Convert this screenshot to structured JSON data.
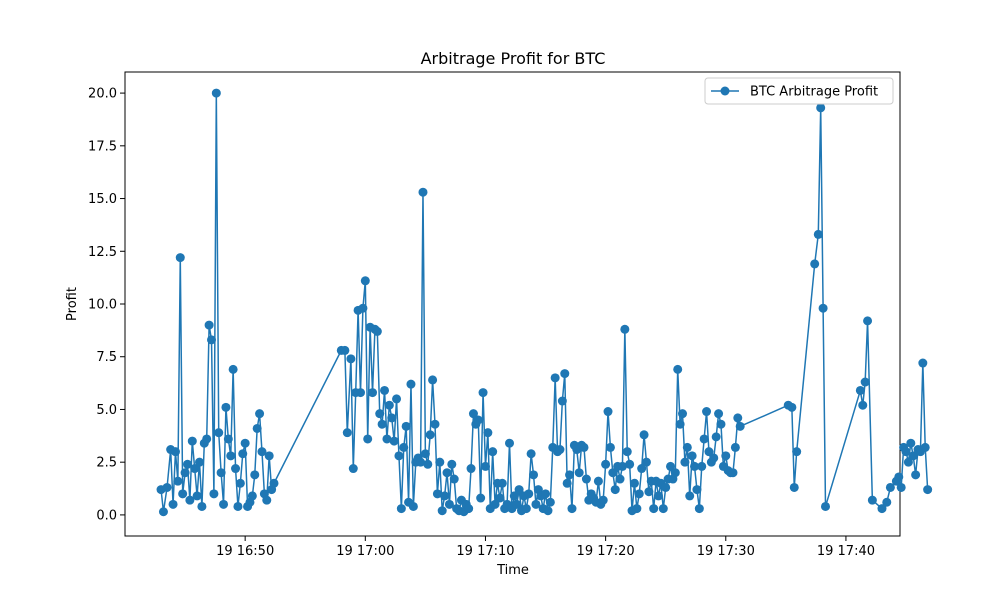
{
  "chart_data": {
    "type": "line",
    "title": "Arbitrage Profit for BTC",
    "xlabel": "Time",
    "ylabel": "Profit",
    "x_unit": "minutes of 19th, 16:00 baseline",
    "xlim": [
      "16:40.0",
      "17:44.5"
    ],
    "ylim": [
      -1.0,
      21.0
    ],
    "x_ticks": [
      {
        "value": "16:50",
        "label": "19 16:50"
      },
      {
        "value": "17:00",
        "label": "19 17:00"
      },
      {
        "value": "17:10",
        "label": "19 17:10"
      },
      {
        "value": "17:20",
        "label": "19 17:20"
      },
      {
        "value": "17:30",
        "label": "19 17:30"
      },
      {
        "value": "17:40",
        "label": "19 17:40"
      }
    ],
    "y_ticks": [
      {
        "value": 0.0,
        "label": "0.0"
      },
      {
        "value": 2.5,
        "label": "2.5"
      },
      {
        "value": 5.0,
        "label": "5.0"
      },
      {
        "value": 7.5,
        "label": "7.5"
      },
      {
        "value": 10.0,
        "label": "10.0"
      },
      {
        "value": 12.5,
        "label": "12.5"
      },
      {
        "value": 15.0,
        "label": "15.0"
      },
      {
        "value": 17.5,
        "label": "17.5"
      },
      {
        "value": 20.0,
        "label": "20.0"
      }
    ],
    "grid": false,
    "legend": {
      "position": "top-right"
    },
    "color": "#1f77b4",
    "series": [
      {
        "name": "BTC Arbitrage Profit",
        "points": [
          [
            "16:43.0",
            1.2
          ],
          [
            "16:43.2",
            0.15
          ],
          [
            "16:43.5",
            1.3
          ],
          [
            "16:43.8",
            3.1
          ],
          [
            "16:44.0",
            0.5
          ],
          [
            "16:44.2",
            3.0
          ],
          [
            "16:44.4",
            1.6
          ],
          [
            "16:44.6",
            12.2
          ],
          [
            "16:44.8",
            1.0
          ],
          [
            "16:45.0",
            2.0
          ],
          [
            "16:45.2",
            2.4
          ],
          [
            "16:45.4",
            0.7
          ],
          [
            "16:45.6",
            3.5
          ],
          [
            "16:45.8",
            2.2
          ],
          [
            "16:46.0",
            0.9
          ],
          [
            "16:46.2",
            2.5
          ],
          [
            "16:46.4",
            0.4
          ],
          [
            "16:46.6",
            3.4
          ],
          [
            "16:46.8",
            3.6
          ],
          [
            "16:47.0",
            9.0
          ],
          [
            "16:47.2",
            8.3
          ],
          [
            "16:47.4",
            1.0
          ],
          [
            "16:47.6",
            20.0
          ],
          [
            "16:47.8",
            3.9
          ],
          [
            "16:48.0",
            2.0
          ],
          [
            "16:48.2",
            0.5
          ],
          [
            "16:48.4",
            5.1
          ],
          [
            "16:48.6",
            3.6
          ],
          [
            "16:48.8",
            2.8
          ],
          [
            "16:49.0",
            6.9
          ],
          [
            "16:49.2",
            2.2
          ],
          [
            "16:49.4",
            0.4
          ],
          [
            "16:49.6",
            1.5
          ],
          [
            "16:49.8",
            2.9
          ],
          [
            "16:50.0",
            3.4
          ],
          [
            "16:50.2",
            0.4
          ],
          [
            "16:50.4",
            0.6
          ],
          [
            "16:50.6",
            0.9
          ],
          [
            "16:50.8",
            1.9
          ],
          [
            "16:51.0",
            4.1
          ],
          [
            "16:51.2",
            4.8
          ],
          [
            "16:51.4",
            3.0
          ],
          [
            "16:51.6",
            1.0
          ],
          [
            "16:51.8",
            0.7
          ],
          [
            "16:52.0",
            2.8
          ],
          [
            "16:52.2",
            1.2
          ],
          [
            "16:52.4",
            1.5
          ],
          [
            "16:58.0",
            7.8
          ],
          [
            "16:58.3",
            7.8
          ],
          [
            "16:58.5",
            3.9
          ],
          [
            "16:58.8",
            7.4
          ],
          [
            "16:59.0",
            2.2
          ],
          [
            "16:59.2",
            5.8
          ],
          [
            "16:59.4",
            9.7
          ],
          [
            "16:59.6",
            5.8
          ],
          [
            "16:59.8",
            9.8
          ],
          [
            "17:00.0",
            11.1
          ],
          [
            "17:00.2",
            3.6
          ],
          [
            "17:00.4",
            8.9
          ],
          [
            "17:00.6",
            5.8
          ],
          [
            "17:00.8",
            8.8
          ],
          [
            "17:01.0",
            8.7
          ],
          [
            "17:01.2",
            4.8
          ],
          [
            "17:01.4",
            4.3
          ],
          [
            "17:01.6",
            5.9
          ],
          [
            "17:01.8",
            3.6
          ],
          [
            "17:02.0",
            5.2
          ],
          [
            "17:02.2",
            4.6
          ],
          [
            "17:02.4",
            3.5
          ],
          [
            "17:02.6",
            5.5
          ],
          [
            "17:02.8",
            2.8
          ],
          [
            "17:03.0",
            0.3
          ],
          [
            "17:03.2",
            3.2
          ],
          [
            "17:03.4",
            4.2
          ],
          [
            "17:03.6",
            0.6
          ],
          [
            "17:03.8",
            6.2
          ],
          [
            "17:04.0",
            0.4
          ],
          [
            "17:04.2",
            2.5
          ],
          [
            "17:04.4",
            2.7
          ],
          [
            "17:04.6",
            2.5
          ],
          [
            "17:04.8",
            15.3
          ],
          [
            "17:05.0",
            2.9
          ],
          [
            "17:05.2",
            2.4
          ],
          [
            "17:05.4",
            3.8
          ],
          [
            "17:05.6",
            6.4
          ],
          [
            "17:05.8",
            4.3
          ],
          [
            "17:06.0",
            1.0
          ],
          [
            "17:06.2",
            2.5
          ],
          [
            "17:06.4",
            0.2
          ],
          [
            "17:06.6",
            0.9
          ],
          [
            "17:06.8",
            2.0
          ],
          [
            "17:07.0",
            0.5
          ],
          [
            "17:07.2",
            2.4
          ],
          [
            "17:07.4",
            1.7
          ],
          [
            "17:07.6",
            0.3
          ],
          [
            "17:07.8",
            0.2
          ],
          [
            "17:08.0",
            0.7
          ],
          [
            "17:08.2",
            0.15
          ],
          [
            "17:08.4",
            0.5
          ],
          [
            "17:08.6",
            0.3
          ],
          [
            "17:08.8",
            2.2
          ],
          [
            "17:09.0",
            4.8
          ],
          [
            "17:09.2",
            4.3
          ],
          [
            "17:09.4",
            4.5
          ],
          [
            "17:09.6",
            0.8
          ],
          [
            "17:09.8",
            5.8
          ],
          [
            "17:10.0",
            2.3
          ],
          [
            "17:10.2",
            3.9
          ],
          [
            "17:10.4",
            0.3
          ],
          [
            "17:10.6",
            3.0
          ],
          [
            "17:10.8",
            0.5
          ],
          [
            "17:11.0",
            1.5
          ],
          [
            "17:11.2",
            0.8
          ],
          [
            "17:11.4",
            1.5
          ],
          [
            "17:11.6",
            0.3
          ],
          [
            "17:11.8",
            0.5
          ],
          [
            "17:12.0",
            3.4
          ],
          [
            "17:12.2",
            0.3
          ],
          [
            "17:12.4",
            0.9
          ],
          [
            "17:12.6",
            0.5
          ],
          [
            "17:12.8",
            1.2
          ],
          [
            "17:13.0",
            0.2
          ],
          [
            "17:13.2",
            0.9
          ],
          [
            "17:13.4",
            0.3
          ],
          [
            "17:13.6",
            1.0
          ],
          [
            "17:13.8",
            2.9
          ],
          [
            "17:14.0",
            1.9
          ],
          [
            "17:14.2",
            0.5
          ],
          [
            "17:14.4",
            1.2
          ],
          [
            "17:14.6",
            0.9
          ],
          [
            "17:14.8",
            0.3
          ],
          [
            "17:15.0",
            1.0
          ],
          [
            "17:15.2",
            0.2
          ],
          [
            "17:15.4",
            0.6
          ],
          [
            "17:15.6",
            3.2
          ],
          [
            "17:15.8",
            6.5
          ],
          [
            "17:16.0",
            3.0
          ],
          [
            "17:16.2",
            3.1
          ],
          [
            "17:16.4",
            5.4
          ],
          [
            "17:16.6",
            6.7
          ],
          [
            "17:16.8",
            1.5
          ],
          [
            "17:17.0",
            1.9
          ],
          [
            "17:17.2",
            0.3
          ],
          [
            "17:17.4",
            3.3
          ],
          [
            "17:17.6",
            3.1
          ],
          [
            "17:17.8",
            2.0
          ],
          [
            "17:18.0",
            3.3
          ],
          [
            "17:18.2",
            3.2
          ],
          [
            "17:18.4",
            1.7
          ],
          [
            "17:18.6",
            0.7
          ],
          [
            "17:18.8",
            1.0
          ],
          [
            "17:19.0",
            0.8
          ],
          [
            "17:19.2",
            0.6
          ],
          [
            "17:19.4",
            1.6
          ],
          [
            "17:19.6",
            0.5
          ],
          [
            "17:19.8",
            0.7
          ],
          [
            "17:20.0",
            2.4
          ],
          [
            "17:20.2",
            4.9
          ],
          [
            "17:20.4",
            3.2
          ],
          [
            "17:20.6",
            2.0
          ],
          [
            "17:20.8",
            1.2
          ],
          [
            "17:21.0",
            2.3
          ],
          [
            "17:21.2",
            1.7
          ],
          [
            "17:21.4",
            2.3
          ],
          [
            "17:21.6",
            8.8
          ],
          [
            "17:21.8",
            3.0
          ],
          [
            "17:22.0",
            2.4
          ],
          [
            "17:22.2",
            0.2
          ],
          [
            "17:22.4",
            1.5
          ],
          [
            "17:22.6",
            0.3
          ],
          [
            "17:22.8",
            1.0
          ],
          [
            "17:23.0",
            2.2
          ],
          [
            "17:23.2",
            3.8
          ],
          [
            "17:23.4",
            2.5
          ],
          [
            "17:23.6",
            1.1
          ],
          [
            "17:23.8",
            1.6
          ],
          [
            "17:24.0",
            0.3
          ],
          [
            "17:24.2",
            1.6
          ],
          [
            "17:24.4",
            0.9
          ],
          [
            "17:24.6",
            1.5
          ],
          [
            "17:24.8",
            0.3
          ],
          [
            "17:25.0",
            1.3
          ],
          [
            "17:25.2",
            1.7
          ],
          [
            "17:25.4",
            2.3
          ],
          [
            "17:25.6",
            1.7
          ],
          [
            "17:25.8",
            2.0
          ],
          [
            "17:26.0",
            6.9
          ],
          [
            "17:26.2",
            4.3
          ],
          [
            "17:26.4",
            4.8
          ],
          [
            "17:26.6",
            2.5
          ],
          [
            "17:26.8",
            3.2
          ],
          [
            "17:27.0",
            0.9
          ],
          [
            "17:27.2",
            2.8
          ],
          [
            "17:27.4",
            2.3
          ],
          [
            "17:27.6",
            1.2
          ],
          [
            "17:27.8",
            0.3
          ],
          [
            "17:28.0",
            2.3
          ],
          [
            "17:28.2",
            3.6
          ],
          [
            "17:28.4",
            4.9
          ],
          [
            "17:28.6",
            3.0
          ],
          [
            "17:28.8",
            2.5
          ],
          [
            "17:29.0",
            2.7
          ],
          [
            "17:29.2",
            3.7
          ],
          [
            "17:29.4",
            4.8
          ],
          [
            "17:29.6",
            4.3
          ],
          [
            "17:29.8",
            2.3
          ],
          [
            "17:30.0",
            2.8
          ],
          [
            "17:30.2",
            2.1
          ],
          [
            "17:30.4",
            2.0
          ],
          [
            "17:30.6",
            2.0
          ],
          [
            "17:30.8",
            3.2
          ],
          [
            "17:31.0",
            4.6
          ],
          [
            "17:31.2",
            4.2
          ],
          [
            "17:35.2",
            5.2
          ],
          [
            "17:35.5",
            5.1
          ],
          [
            "17:35.7",
            1.3
          ],
          [
            "17:35.9",
            3.0
          ],
          [
            "17:37.4",
            11.9
          ],
          [
            "17:37.7",
            13.3
          ],
          [
            "17:37.9",
            19.3
          ],
          [
            "17:38.1",
            9.8
          ],
          [
            "17:38.3",
            0.4
          ],
          [
            "17:41.2",
            5.9
          ],
          [
            "17:41.4",
            5.2
          ],
          [
            "17:41.6",
            6.3
          ],
          [
            "17:41.8",
            9.2
          ],
          [
            "17:42.2",
            0.7
          ],
          [
            "17:43.0",
            0.3
          ],
          [
            "17:43.4",
            0.6
          ],
          [
            "17:43.7",
            1.3
          ],
          [
            "17:44.2",
            1.6
          ],
          [
            "17:44.4",
            1.8
          ],
          [
            "17:44.6",
            1.3
          ],
          [
            "17:44.8",
            3.2
          ],
          [
            "17:45.0",
            3.0
          ],
          [
            "17:45.2",
            2.5
          ],
          [
            "17:45.4",
            3.4
          ],
          [
            "17:45.6",
            2.8
          ],
          [
            "17:45.8",
            1.9
          ],
          [
            "17:46.0",
            3.1
          ],
          [
            "17:46.2",
            3.0
          ],
          [
            "17:46.4",
            7.2
          ],
          [
            "17:46.6",
            3.2
          ],
          [
            "17:46.8",
            1.2
          ]
        ]
      }
    ]
  }
}
